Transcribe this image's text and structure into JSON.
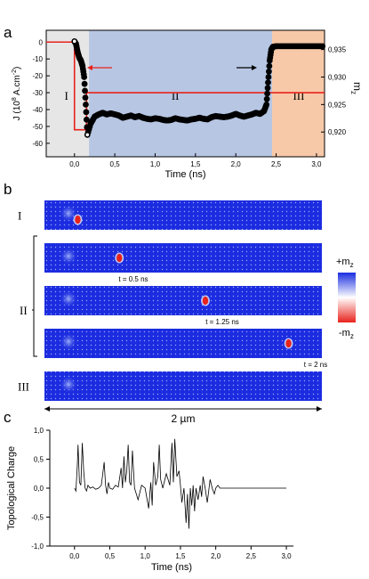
{
  "panels": {
    "a": "a",
    "b": "b",
    "c": "c"
  },
  "chart_data": [
    {
      "type": "line",
      "panel": "a",
      "xlabel": "Time (ns)",
      "ylabel_left": "J (10^8 A.cm^-2)",
      "ylabel_right": "m_z",
      "xlim": [
        -0.35,
        3.1
      ],
      "ylim_left": [
        -68,
        7
      ],
      "ylim_right": [
        0.9155,
        0.9385
      ],
      "xticks": [
        "0,0",
        "0,5",
        "1,0",
        "1,5",
        "2,0",
        "2,5",
        "3,0"
      ],
      "xtick_values": [
        0,
        0.5,
        1.0,
        1.5,
        2.0,
        2.5,
        3.0
      ],
      "yticks_left": [
        "0",
        "-10",
        "-20",
        "-30",
        "-40",
        "-50",
        "-60"
      ],
      "ytick_values_left": [
        0,
        -10,
        -20,
        -30,
        -40,
        -50,
        -60
      ],
      "yticks_right": [
        "0,935",
        "0,930",
        "0,925",
        "0,920"
      ],
      "ytick_values_right": [
        0.935,
        0.93,
        0.925,
        0.92
      ],
      "regions": [
        {
          "label": "I",
          "x": [
            -0.35,
            0.18
          ],
          "color": "#e6e6e6"
        },
        {
          "label": "II",
          "x": [
            0.18,
            2.45
          ],
          "color": "#b7c6e3"
        },
        {
          "label": "III",
          "x": [
            2.45,
            3.1
          ],
          "color": "#f7c9a8"
        }
      ],
      "series": [
        {
          "axis": "left",
          "color": "#e8231c",
          "x": [
            -0.35,
            0.0,
            0.0,
            0.15,
            0.15,
            3.1
          ],
          "y": [
            0,
            0,
            -52,
            -52,
            -30,
            -30
          ]
        },
        {
          "axis": "right",
          "color": "#000000",
          "x": [
            0.0,
            0.02,
            0.04,
            0.06,
            0.08,
            0.1,
            0.12,
            0.14,
            0.16,
            0.2,
            0.25,
            0.3,
            0.35,
            0.4,
            0.45,
            0.5,
            0.55,
            0.6,
            0.65,
            0.7,
            0.75,
            0.8,
            0.85,
            0.9,
            0.95,
            1.0,
            1.05,
            1.1,
            1.15,
            1.2,
            1.25,
            1.3,
            1.35,
            1.4,
            1.45,
            1.5,
            1.55,
            1.6,
            1.65,
            1.7,
            1.75,
            1.8,
            1.85,
            1.9,
            1.95,
            2.0,
            2.05,
            2.1,
            2.15,
            2.2,
            2.25,
            2.3,
            2.35,
            2.38,
            2.4,
            2.42,
            2.44,
            2.46,
            2.5,
            2.6,
            2.7,
            2.8,
            2.9,
            3.0,
            3.1
          ],
          "y": [
            0.9365,
            0.936,
            0.9345,
            0.9335,
            0.933,
            0.932,
            0.93,
            0.925,
            0.9195,
            0.9215,
            0.9228,
            0.9232,
            0.9235,
            0.9232,
            0.9234,
            0.9232,
            0.923,
            0.9226,
            0.9228,
            0.923,
            0.9227,
            0.9229,
            0.9226,
            0.9224,
            0.9223,
            0.9225,
            0.9224,
            0.9222,
            0.9221,
            0.9222,
            0.9225,
            0.9223,
            0.9222,
            0.9221,
            0.9223,
            0.9224,
            0.9226,
            0.9224,
            0.9223,
            0.9227,
            0.9229,
            0.9228,
            0.9227,
            0.9228,
            0.923,
            0.9233,
            0.923,
            0.9228,
            0.923,
            0.9232,
            0.9235,
            0.9233,
            0.9238,
            0.925,
            0.929,
            0.933,
            0.935,
            0.9355,
            0.9356,
            0.9356,
            0.9356,
            0.9356,
            0.9356,
            0.9356,
            0.9356
          ]
        }
      ],
      "region_labels": [
        "I",
        "II",
        "III"
      ]
    },
    {
      "type": "heatmap",
      "panel": "b",
      "rows": [
        {
          "row_label": "I",
          "skyrmion_x": 0.12,
          "time_label": ""
        },
        {
          "row_label": "II",
          "skyrmion_x": 0.27,
          "time_label": "t = 0.5 ns"
        },
        {
          "row_label": "",
          "skyrmion_x": 0.58,
          "time_label": "t = 1.25 ns"
        },
        {
          "row_label": "",
          "skyrmion_x": 0.88,
          "time_label": "t = 2 ns"
        },
        {
          "row_label": "III",
          "skyrmion_x": null,
          "time_label": ""
        }
      ],
      "group_label": "II",
      "scale_bar": "2 µm",
      "colorbar_top": "+m_z",
      "colorbar_bottom": "-m_z",
      "colors": {
        "plus": "#1a2ee0",
        "zero": "#ffffff",
        "minus": "#e8231c"
      }
    },
    {
      "type": "line",
      "panel": "c",
      "xlabel": "Time (ns)",
      "ylabel": "Topological Charge",
      "xlim": [
        -0.35,
        3.1
      ],
      "ylim": [
        -1.0,
        1.0
      ],
      "xticks": [
        "0,0",
        "0,5",
        "1,0",
        "1,5",
        "2,0",
        "2,5",
        "3,0"
      ],
      "xtick_values": [
        0,
        0.5,
        1.0,
        1.5,
        2.0,
        2.5,
        3.0
      ],
      "yticks": [
        "1,0",
        "0,5",
        "0,0",
        "-0,5",
        "-1,0"
      ],
      "ytick_values": [
        1.0,
        0.5,
        0.0,
        -0.5,
        -1.0
      ],
      "series": [
        {
          "color": "#000000",
          "x": [
            0.0,
            0.02,
            0.04,
            0.05,
            0.07,
            0.09,
            0.11,
            0.13,
            0.15,
            0.17,
            0.19,
            0.22,
            0.26,
            0.3,
            0.34,
            0.38,
            0.42,
            0.44,
            0.46,
            0.48,
            0.5,
            0.54,
            0.58,
            0.62,
            0.66,
            0.68,
            0.7,
            0.72,
            0.74,
            0.76,
            0.78,
            0.8,
            0.82,
            0.85,
            0.9,
            0.95,
            1.0,
            1.05,
            1.08,
            1.1,
            1.12,
            1.15,
            1.18,
            1.2,
            1.22,
            1.25,
            1.3,
            1.35,
            1.38,
            1.4,
            1.42,
            1.45,
            1.48,
            1.5,
            1.52,
            1.55,
            1.58,
            1.6,
            1.62,
            1.64,
            1.66,
            1.68,
            1.7,
            1.72,
            1.75,
            1.78,
            1.8,
            1.82,
            1.85,
            1.88,
            1.9,
            1.92,
            1.95,
            1.98,
            2.0,
            2.03,
            2.06,
            2.1,
            2.2,
            2.4,
            2.6,
            2.8,
            3.0
          ],
          "y": [
            0.0,
            -0.05,
            0.4,
            0.75,
            0.1,
            0.05,
            0.78,
            0.3,
            0.0,
            -0.05,
            0.05,
            0.0,
            0.02,
            -0.02,
            0.0,
            0.05,
            0.45,
            0.05,
            -0.1,
            0.1,
            0.0,
            -0.02,
            0.05,
            0.02,
            0.35,
            0.0,
            0.55,
            0.1,
            0.3,
            0.75,
            0.1,
            0.05,
            0.65,
            0.0,
            -0.2,
            0.05,
            0.0,
            -0.35,
            0.1,
            -0.3,
            0.45,
            0.05,
            0.2,
            0.75,
            0.15,
            0.0,
            0.25,
            0.05,
            0.78,
            0.1,
            0.85,
            0.2,
            0.3,
            0.05,
            -0.25,
            0.0,
            -0.6,
            -0.1,
            -0.7,
            0.0,
            -0.3,
            0.05,
            -0.4,
            0.0,
            -0.2,
            0.05,
            -0.15,
            0.2,
            0.0,
            -0.25,
            -0.05,
            0.15,
            0.0,
            -0.1,
            0.0,
            0.05,
            0.0,
            0.0,
            0.0,
            0.0,
            0.0,
            0.0,
            0.0
          ]
        }
      ]
    }
  ]
}
